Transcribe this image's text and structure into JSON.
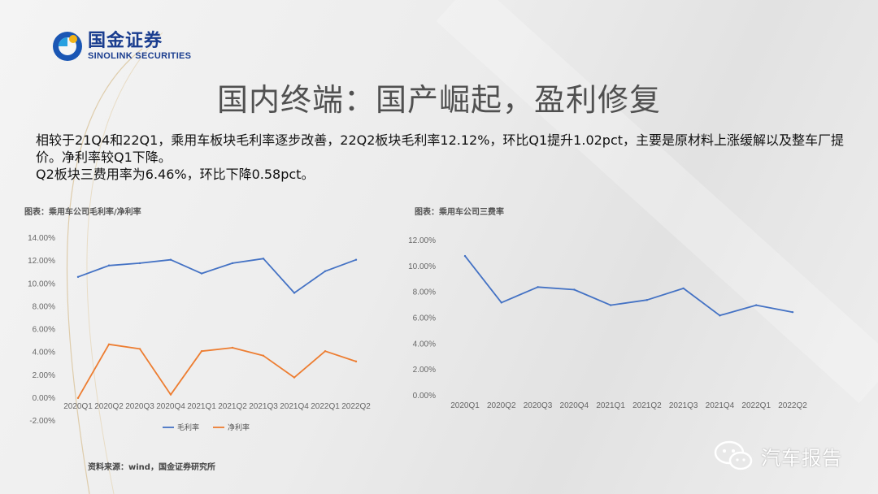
{
  "logo": {
    "cn": "国金证券",
    "en": "SINOLINK SECURITIES"
  },
  "title": "国内终端：国产崛起，盈利修复",
  "body": {
    "line1": "相较于21Q4和22Q1，乘用车板块毛利率逐步改善，22Q2板块毛利率12.12%，环比Q1提升1.02pct，主要是原材料上涨缓解以及整车厂提价。净利率较Q1下降。",
    "line2": "Q2板块三费用率为6.46%，环比下降0.58pct。"
  },
  "source": "资料来源：wind，国金证券研究所",
  "watermark": "汽车报告",
  "colors": {
    "blue": "#4472C4",
    "orange": "#ED7D31",
    "brand": "#1a3d8f"
  },
  "chart_data": [
    {
      "type": "line",
      "title": "图表：乘用车公司毛利率/净利率",
      "categories": [
        "2020Q1",
        "2020Q2",
        "2020Q3",
        "2020Q4",
        "2021Q1",
        "2021Q2",
        "2021Q3",
        "2021Q4",
        "2022Q1",
        "2022Q2"
      ],
      "series": [
        {
          "name": "毛利率",
          "color": "#4472C4",
          "values": [
            10.6,
            11.6,
            11.8,
            12.1,
            10.9,
            11.8,
            12.2,
            9.2,
            11.1,
            12.1
          ]
        },
        {
          "name": "净利率",
          "color": "#ED7D31",
          "values": [
            0.0,
            4.7,
            4.3,
            0.3,
            4.1,
            4.4,
            3.7,
            1.8,
            4.1,
            3.2
          ]
        }
      ],
      "yticks": [
        "14.00%",
        "12.00%",
        "10.00%",
        "8.00%",
        "6.00%",
        "4.00%",
        "2.00%",
        "0.00%",
        "-2.00%"
      ],
      "ylim": [
        -2,
        14
      ],
      "legend": "bottom",
      "grid": false
    },
    {
      "type": "line",
      "title": "图表：乘用车公司三费率",
      "categories": [
        "2020Q1",
        "2020Q2",
        "2020Q3",
        "2020Q4",
        "2021Q1",
        "2021Q2",
        "2021Q3",
        "2021Q4",
        "2022Q1",
        "2022Q2"
      ],
      "series": [
        {
          "color": "#4472C4",
          "values": [
            10.8,
            7.2,
            8.4,
            8.2,
            7.0,
            7.4,
            8.3,
            6.2,
            7.0,
            6.46
          ]
        }
      ],
      "yticks": [
        "12.00%",
        "10.00%",
        "8.00%",
        "6.00%",
        "4.00%",
        "2.00%",
        "0.00%"
      ],
      "ylim": [
        0,
        12
      ],
      "legend": "none",
      "grid": false
    }
  ]
}
